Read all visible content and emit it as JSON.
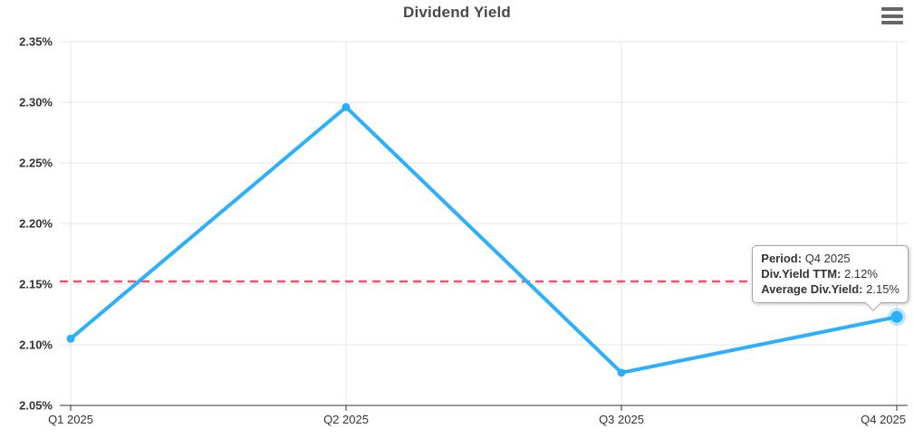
{
  "header": {
    "title": "Dividend Yield"
  },
  "colors": {
    "series_line": "#2CAFFE",
    "series_halo": "#2CAFFE",
    "average_line": "#E8546B",
    "grid": "#E6E6E6",
    "axis": "#333333",
    "axis_label": "#333333",
    "title": "#4A4A4A",
    "menu_icon": "#666666",
    "tooltip_border": "#A7A7A7",
    "tooltip_bg": "#FFFFFF"
  },
  "chart_data": {
    "type": "line",
    "title": "Dividend Yield",
    "categories": [
      "Q1 2025",
      "Q2 2025",
      "Q3 2025",
      "Q4 2025"
    ],
    "series": [
      {
        "name": "Div.Yield TTM",
        "type": "line",
        "values": [
          2.105,
          2.296,
          2.077,
          2.123
        ],
        "color": "#2CAFFE"
      },
      {
        "name": "Average Div.Yield",
        "type": "average",
        "value": 2.15,
        "color": "#E8546B",
        "dashed": true
      }
    ],
    "ylim": [
      2.05,
      2.35
    ],
    "ytick_step": 0.05,
    "ytick_labels": [
      "2.05%",
      "2.10%",
      "2.15%",
      "2.20%",
      "2.25%",
      "2.30%",
      "2.35%"
    ],
    "grid": true,
    "legend": "none",
    "hovered_index": 3
  },
  "tooltip": {
    "rows": [
      {
        "label": "Period:",
        "value": "Q4 2025"
      },
      {
        "label": "Div.Yield TTM:",
        "value": "2.12%"
      },
      {
        "label": "Average Div.Yield:",
        "value": "2.15%"
      }
    ]
  }
}
